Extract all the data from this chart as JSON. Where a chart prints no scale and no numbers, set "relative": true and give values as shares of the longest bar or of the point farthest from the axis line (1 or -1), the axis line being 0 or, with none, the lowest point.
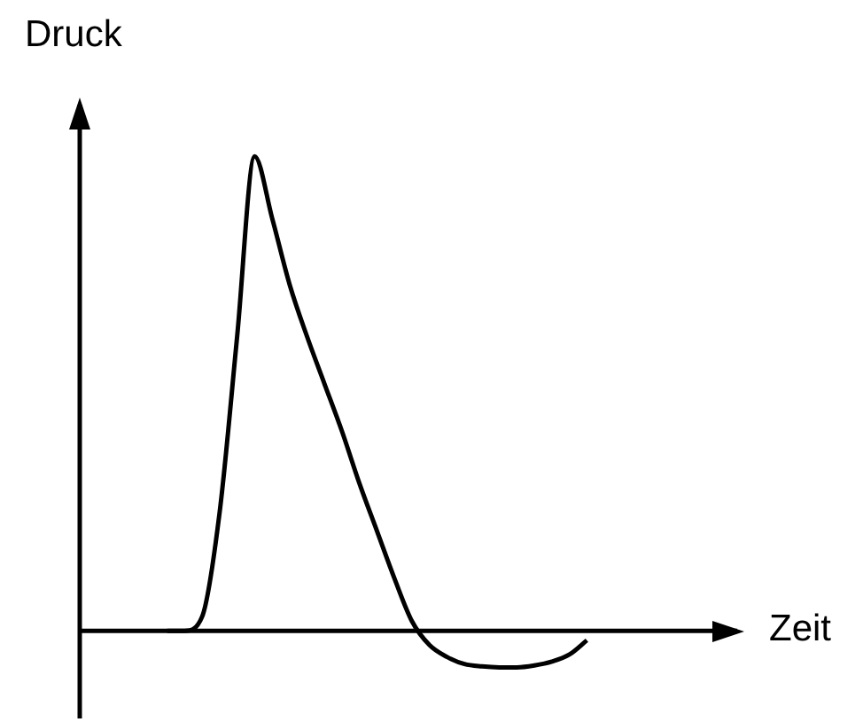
{
  "chart_data": {
    "type": "line",
    "relative": true,
    "xlabel": "Zeit",
    "ylabel": "Druck",
    "color": "#000000",
    "marker": "none",
    "legend": false,
    "categories": [
      null,
      null,
      null,
      null,
      null,
      null,
      null,
      null,
      null,
      null,
      null,
      null,
      null,
      null,
      null,
      null,
      null,
      null,
      null,
      null,
      null,
      null,
      null,
      null,
      null,
      null,
      null,
      null,
      null,
      null,
      null,
      null,
      null,
      null,
      null,
      null,
      null,
      null,
      null
    ],
    "values": [
      null,
      null,
      null,
      null,
      null,
      0,
      0,
      0.03,
      0.25,
      0.62,
      1,
      0.87,
      0.73,
      0.62,
      0.52,
      0.42,
      0.31,
      0.21,
      0.11,
      0.02,
      -0.03,
      -0.055,
      -0.07,
      -0.075,
      -0.077,
      -0.077,
      -0.073,
      -0.065,
      -0.05,
      -0.02,
      null,
      null,
      null,
      null,
      null,
      null,
      null,
      null,
      null
    ]
  }
}
